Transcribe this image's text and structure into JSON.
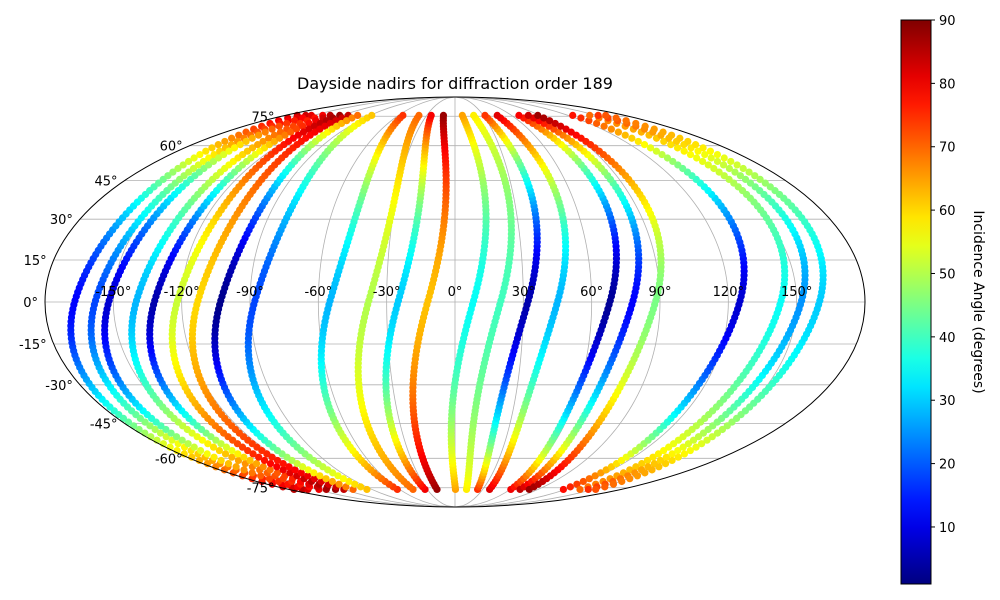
{
  "chart_data": {
    "type": "scatter",
    "projection": "mollweide",
    "title": "Dayside nadirs for diffraction order 189",
    "grid": true,
    "xtick_labels": [
      {
        "lon": -150,
        "label": "-150°"
      },
      {
        "lon": -120,
        "label": "-120°"
      },
      {
        "lon": -90,
        "label": "-90°"
      },
      {
        "lon": -60,
        "label": "-60°"
      },
      {
        "lon": -30,
        "label": "-30°"
      },
      {
        "lon": 0,
        "label": "0°"
      },
      {
        "lon": 30,
        "label": "30°"
      },
      {
        "lon": 60,
        "label": "60°"
      },
      {
        "lon": 90,
        "label": "90°"
      },
      {
        "lon": 120,
        "label": "120°"
      },
      {
        "lon": 150,
        "label": "150°"
      }
    ],
    "ytick_labels": [
      {
        "lat": 75,
        "label": "75°"
      },
      {
        "lat": 60,
        "label": "60°"
      },
      {
        "lat": 45,
        "label": "45°"
      },
      {
        "lat": 30,
        "label": "30°"
      },
      {
        "lat": 15,
        "label": "15°"
      },
      {
        "lat": 0,
        "label": "0°"
      },
      {
        "lat": -15,
        "label": "-15°"
      },
      {
        "lat": -30,
        "label": "-30°"
      },
      {
        "lat": -45,
        "label": "-45°"
      },
      {
        "lat": -60,
        "label": "-60°"
      },
      {
        "lat": -75,
        "label": "-75°"
      }
    ],
    "colorbar": {
      "label": "Incidence Angle (degrees)",
      "colormap": "jet",
      "vmin": 1,
      "vmax": 90,
      "ticks": [
        10,
        20,
        30,
        40,
        50,
        60,
        70,
        80,
        90
      ]
    },
    "series": [
      {
        "lon_eq": -167,
        "inc_min": 12,
        "inc_max": 85
      },
      {
        "lon_eq": -158,
        "inc_min": 18,
        "inc_max": 84
      },
      {
        "lon_eq": -152,
        "inc_min": 8,
        "inc_max": 82
      },
      {
        "lon_eq": -140,
        "inc_min": 28,
        "inc_max": 80
      },
      {
        "lon_eq": -132,
        "inc_min": 5,
        "inc_max": 86
      },
      {
        "lon_eq": -122,
        "inc_min": 52,
        "inc_max": 88
      },
      {
        "lon_eq": -113,
        "inc_min": 60,
        "inc_max": 84
      },
      {
        "lon_eq": -103,
        "inc_min": 2,
        "inc_max": 70
      },
      {
        "lon_eq": -88,
        "inc_min": 18,
        "inc_max": 62
      },
      {
        "lon_eq": -55,
        "inc_min": 28,
        "inc_max": 75
      },
      {
        "lon_eq": -38,
        "inc_min": 50,
        "inc_max": 70
      },
      {
        "lon_eq": -25,
        "inc_min": 30,
        "inc_max": 80
      },
      {
        "lon_eq": -12,
        "inc_min": 62,
        "inc_max": 88
      },
      {
        "lon_eq": 8,
        "inc_min": 35,
        "inc_max": 65
      },
      {
        "lon_eq": 20,
        "inc_min": 40,
        "inc_max": 58
      },
      {
        "lon_eq": 32,
        "inc_min": 5,
        "inc_max": 75
      },
      {
        "lon_eq": 45,
        "inc_min": 28,
        "inc_max": 82
      },
      {
        "lon_eq": 68,
        "inc_min": 3,
        "inc_max": 80
      },
      {
        "lon_eq": 78,
        "inc_min": 12,
        "inc_max": 84
      },
      {
        "lon_eq": 88,
        "inc_min": 45,
        "inc_max": 88
      },
      {
        "lon_eq": 125,
        "inc_min": 8,
        "inc_max": 78
      },
      {
        "lon_eq": 143,
        "inc_min": 35,
        "inc_max": 70
      },
      {
        "lon_eq": 152,
        "inc_min": 25,
        "inc_max": 75
      },
      {
        "lon_eq": 160,
        "inc_min": 30,
        "inc_max": 72
      }
    ]
  }
}
